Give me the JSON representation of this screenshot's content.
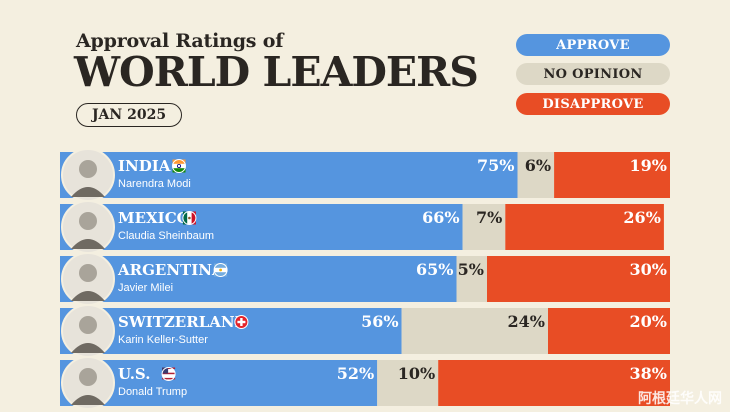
{
  "header": {
    "title_small": "Approval Ratings of",
    "title_big": "WORLD LEADERS",
    "date": "JAN 2025"
  },
  "legend": {
    "approve": "APPROVE",
    "no_opinion": "NO OPINION",
    "disapprove": "DISAPPROVE"
  },
  "colors": {
    "approve": "#5595df",
    "no_opinion": "#ddd8c6",
    "disapprove": "#e84d25",
    "background": "#f4efe0",
    "text": "#2a2622"
  },
  "watermark": "阿根廷华人网",
  "chart_data": {
    "type": "bar",
    "orientation": "horizontal",
    "stacked": true,
    "title": "Approval Ratings of WORLD LEADERS",
    "subtitle": "JAN 2025",
    "categories": [
      "INDIA",
      "MEXICO",
      "ARGENTINA",
      "SWITZERLAND",
      "U.S."
    ],
    "leaders": [
      "Narendra Modi",
      "Claudia Sheinbaum",
      "Javier Milei",
      "Karin Keller-Sutter",
      "Donald Trump"
    ],
    "flags": [
      "india-flag-icon",
      "mexico-flag-icon",
      "argentina-flag-icon",
      "switzerland-flag-icon",
      "us-flag-icon"
    ],
    "series": [
      {
        "name": "APPROVE",
        "values": [
          75,
          66,
          65,
          56,
          52
        ]
      },
      {
        "name": "NO OPINION",
        "values": [
          6,
          7,
          5,
          24,
          10
        ]
      },
      {
        "name": "DISAPPROVE",
        "values": [
          19,
          26,
          30,
          20,
          38
        ]
      }
    ],
    "unit": "%",
    "legend_position": "top-right"
  }
}
